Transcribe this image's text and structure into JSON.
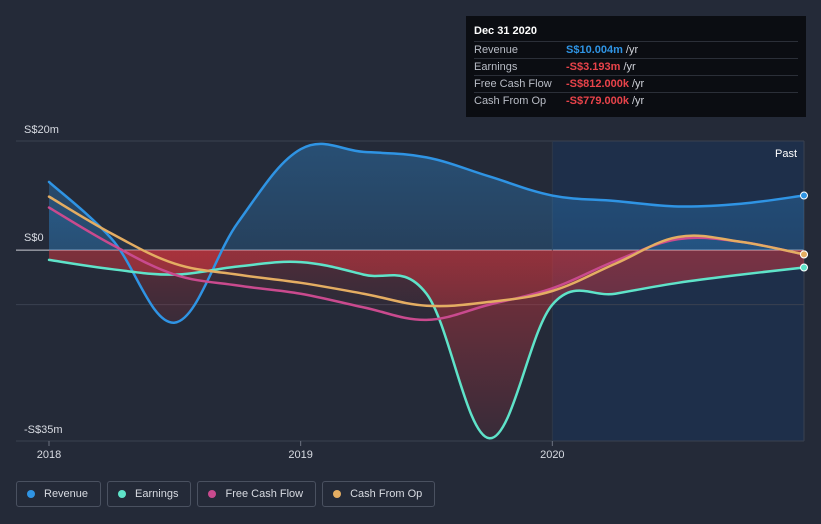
{
  "chart_data": {
    "type": "area",
    "x_ticks": [
      "2018",
      "2019",
      "2020"
    ],
    "y_tick_labels": [
      "S$20m",
      "S$0",
      "-S$35m"
    ],
    "ylim": [
      -35,
      20
    ],
    "unit": "S$m",
    "past_label": "Past",
    "grid": true,
    "legend_position": "bottom-left",
    "series": [
      {
        "name": "Revenue",
        "color": "#2f94e4",
        "points": [
          [
            2018.0,
            12.5
          ],
          [
            2018.25,
            2.0
          ],
          [
            2018.5,
            -13.3
          ],
          [
            2018.75,
            5.0
          ],
          [
            2019.0,
            18.5
          ],
          [
            2019.25,
            18.0
          ],
          [
            2019.5,
            17.0
          ],
          [
            2019.75,
            13.5
          ],
          [
            2020.0,
            10.0
          ],
          [
            2020.25,
            9.0
          ],
          [
            2020.5,
            8.0
          ],
          [
            2020.75,
            8.5
          ],
          [
            2021.0,
            10.004
          ]
        ]
      },
      {
        "name": "Earnings",
        "color": "#5fe3c9",
        "points": [
          [
            2018.0,
            -1.8
          ],
          [
            2018.25,
            -3.5
          ],
          [
            2018.5,
            -4.5
          ],
          [
            2018.75,
            -3.0
          ],
          [
            2019.0,
            -2.2
          ],
          [
            2019.25,
            -4.5
          ],
          [
            2019.5,
            -8.0
          ],
          [
            2019.75,
            -34.5
          ],
          [
            2020.0,
            -10.0
          ],
          [
            2020.25,
            -8.0
          ],
          [
            2020.5,
            -6.0
          ],
          [
            2020.75,
            -4.5
          ],
          [
            2021.0,
            -3.193
          ]
        ]
      },
      {
        "name": "Free Cash Flow",
        "color": "#c94a8e",
        "points": [
          [
            2018.0,
            7.8
          ],
          [
            2018.25,
            1.0
          ],
          [
            2018.5,
            -4.5
          ],
          [
            2018.75,
            -6.5
          ],
          [
            2019.0,
            -8.0
          ],
          [
            2019.25,
            -10.5
          ],
          [
            2019.5,
            -12.8
          ],
          [
            2019.75,
            -10.0
          ],
          [
            2020.0,
            -7.0
          ],
          [
            2020.25,
            -2.0
          ],
          [
            2020.5,
            2.0
          ],
          [
            2020.75,
            1.5
          ],
          [
            2021.0,
            -0.812
          ]
        ]
      },
      {
        "name": "Cash From Op",
        "color": "#e4ad62",
        "points": [
          [
            2018.0,
            9.8
          ],
          [
            2018.25,
            3.0
          ],
          [
            2018.5,
            -2.5
          ],
          [
            2018.75,
            -4.5
          ],
          [
            2019.0,
            -6.0
          ],
          [
            2019.25,
            -8.0
          ],
          [
            2019.5,
            -10.2
          ],
          [
            2019.75,
            -9.5
          ],
          [
            2020.0,
            -7.5
          ],
          [
            2020.25,
            -2.5
          ],
          [
            2020.5,
            2.4
          ],
          [
            2020.75,
            1.5
          ],
          [
            2021.0,
            -0.779
          ]
        ]
      }
    ]
  },
  "tooltip": {
    "date": "Dec 31 2020",
    "unit": "/yr",
    "rows": [
      {
        "label": "Revenue",
        "value": "S$10.004m",
        "color": "#2f94e4"
      },
      {
        "label": "Earnings",
        "value": "-S$3.193m",
        "color": "#e8434a"
      },
      {
        "label": "Free Cash Flow",
        "value": "-S$812.000k",
        "color": "#e8434a"
      },
      {
        "label": "Cash From Op",
        "value": "-S$779.000k",
        "color": "#e8434a"
      }
    ]
  },
  "legend": [
    {
      "label": "Revenue",
      "color": "#2f94e4"
    },
    {
      "label": "Earnings",
      "color": "#5fe3c9"
    },
    {
      "label": "Free Cash Flow",
      "color": "#c94a8e"
    },
    {
      "label": "Cash From Op",
      "color": "#e4ad62"
    }
  ]
}
